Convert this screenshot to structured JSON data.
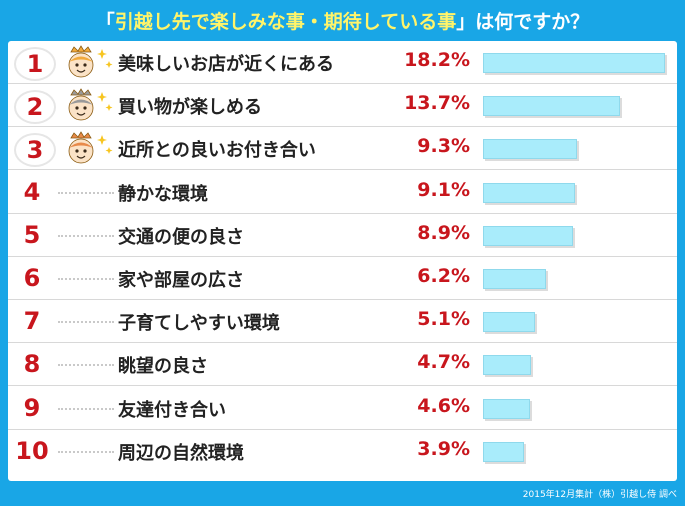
{
  "title": {
    "open": "「",
    "highlight": "引越し先で楽しみな事・期待している事",
    "close": "」",
    "rest": "は何ですか？"
  },
  "footer": "2015年12月集計（株）引越し侍 調べ",
  "colors": {
    "background": "#19a6e6",
    "title_highlight": "#fff46a",
    "rank": "#c8161d",
    "bar": "#a9ecfb",
    "gold": "#f2a93b",
    "silver": "#9a9a9a",
    "bronze": "#e88a4a"
  },
  "chart_data": {
    "type": "bar",
    "orientation": "horizontal",
    "title": "「引越し先で楽しみな事・期待している事」は何ですか？",
    "xlim": [
      0,
      18.2
    ],
    "grid": false,
    "legend": "none",
    "unit": "%",
    "rows": [
      {
        "rank": "1",
        "label": "美味しいお店が近くにある",
        "value": 18.2,
        "value_label": "18.2%",
        "icon": "gold-face-icon"
      },
      {
        "rank": "2",
        "label": "買い物が楽しめる",
        "value": 13.7,
        "value_label": "13.7%",
        "icon": "silver-face-icon"
      },
      {
        "rank": "3",
        "label": "近所との良いお付き合い",
        "value": 9.3,
        "value_label": "9.3%",
        "icon": "bronze-face-icon"
      },
      {
        "rank": "4",
        "label": "静かな環境",
        "value": 9.1,
        "value_label": "9.1%"
      },
      {
        "rank": "5",
        "label": "交通の便の良さ",
        "value": 8.9,
        "value_label": "8.9%"
      },
      {
        "rank": "6",
        "label": "家や部屋の広さ",
        "value": 6.2,
        "value_label": "6.2%"
      },
      {
        "rank": "7",
        "label": "子育てしやすい環境",
        "value": 5.1,
        "value_label": "5.1%"
      },
      {
        "rank": "8",
        "label": "眺望の良さ",
        "value": 4.7,
        "value_label": "4.7%"
      },
      {
        "rank": "9",
        "label": "友達付き合い",
        "value": 4.6,
        "value_label": "4.6%"
      },
      {
        "rank": "10",
        "label": "周辺の自然環境",
        "value": 3.9,
        "value_label": "3.9%"
      }
    ]
  }
}
